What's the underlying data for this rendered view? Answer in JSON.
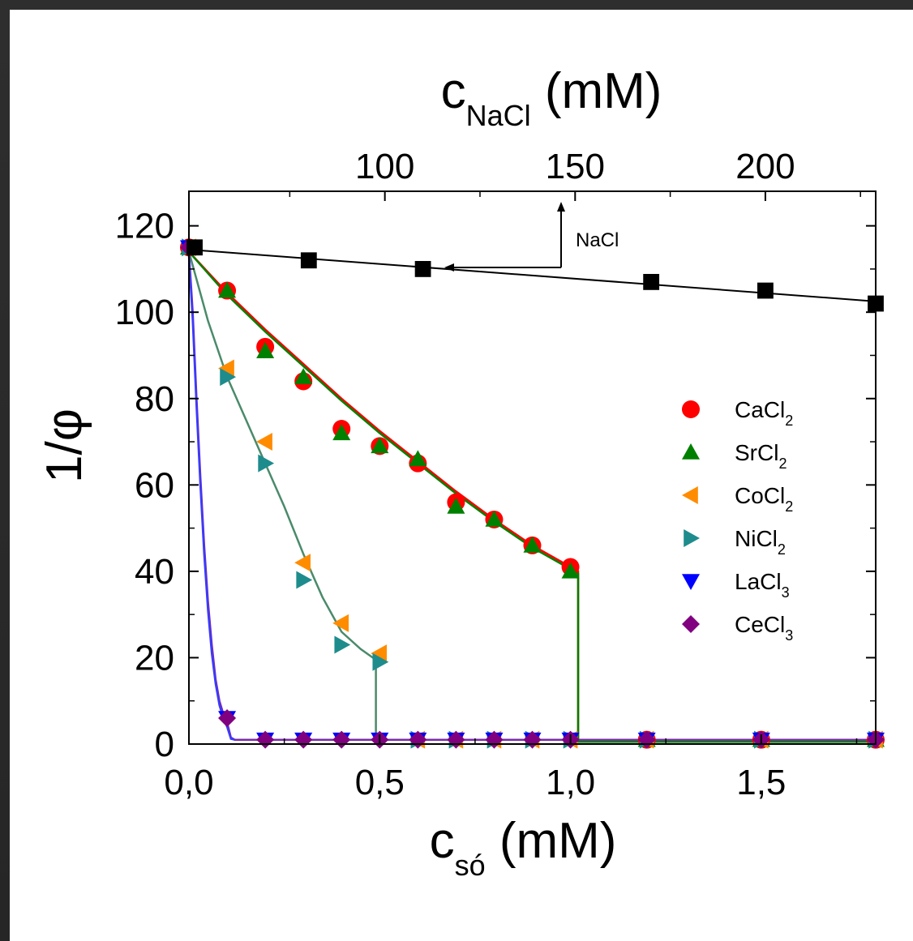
{
  "chart_data": {
    "type": "scatter",
    "title": "",
    "xlabel": "c",
    "xlabel_sub": "só",
    "xlabel_unit": " (mM)",
    "ylabel": "1/φ",
    "top_xlabel": "c",
    "top_xlabel_sub": "NaCl",
    "top_xlabel_unit": " (mM)",
    "xlim": [
      0,
      1.8
    ],
    "ylim": [
      0,
      128
    ],
    "top_xlim": [
      48.5,
      229
    ],
    "x_ticks": [
      0,
      0.5,
      1.0,
      1.5
    ],
    "x_tick_labels": [
      "0,0",
      "0,5",
      "1,0",
      "1,5"
    ],
    "y_ticks": [
      0,
      20,
      40,
      60,
      80,
      100,
      120
    ],
    "y_tick_labels": [
      "0",
      "20",
      "40",
      "60",
      "80",
      "100",
      "120"
    ],
    "top_ticks": [
      100,
      150,
      200
    ],
    "top_tick_labels": [
      "100",
      "150",
      "200"
    ],
    "legend_position": "right",
    "annotation": "NaCl",
    "series": [
      {
        "name": "CaCl",
        "sub": "2",
        "marker": "circle",
        "color": "#ff0000",
        "x": [
          0,
          0.1,
          0.2,
          0.3,
          0.4,
          0.5,
          0.6,
          0.7,
          0.8,
          0.9,
          1.0,
          1.2,
          1.5,
          1.8
        ],
        "y": [
          115,
          105,
          92,
          84,
          73,
          69,
          65,
          56,
          52,
          46,
          41,
          1,
          1,
          1
        ]
      },
      {
        "name": "SrCl",
        "sub": "2",
        "marker": "triangle-up",
        "color": "#008000",
        "x": [
          0,
          0.1,
          0.2,
          0.3,
          0.4,
          0.5,
          0.6,
          0.7,
          0.8,
          0.9,
          1.0,
          1.2,
          1.5,
          1.8
        ],
        "y": [
          115,
          105,
          91,
          85,
          72,
          69,
          66,
          55,
          52,
          46,
          40,
          1,
          1,
          1
        ]
      },
      {
        "name": "CoCl",
        "sub": "2",
        "marker": "triangle-left",
        "color": "#ff8c00",
        "x": [
          0,
          0.1,
          0.2,
          0.3,
          0.4,
          0.5,
          0.6,
          0.7,
          0.8,
          0.9,
          1.0,
          1.2,
          1.5,
          1.8
        ],
        "y": [
          115,
          87,
          70,
          42,
          28,
          21,
          1,
          1,
          1,
          1,
          1,
          1,
          1,
          1
        ]
      },
      {
        "name": "NiCl",
        "sub": "2",
        "marker": "triangle-right",
        "color": "#1e8c8c",
        "x": [
          0,
          0.1,
          0.2,
          0.3,
          0.4,
          0.5,
          0.6,
          0.7,
          0.8,
          0.9,
          1.0,
          1.2,
          1.5,
          1.8
        ],
        "y": [
          115,
          85,
          65,
          38,
          23,
          19,
          1,
          1,
          1,
          1,
          1,
          1,
          1,
          1
        ]
      },
      {
        "name": "LaCl",
        "sub": "3",
        "marker": "triangle-down",
        "color": "#0000ff",
        "x": [
          0,
          0.1,
          0.2,
          0.3,
          0.4,
          0.5,
          0.6,
          0.7,
          0.8,
          0.9,
          1.0,
          1.2,
          1.5,
          1.8
        ],
        "y": [
          115,
          6,
          1,
          1,
          1,
          1,
          1,
          1,
          1,
          1,
          1,
          1,
          1,
          1
        ]
      },
      {
        "name": "CeCl",
        "sub": "3",
        "marker": "diamond",
        "color": "#800080",
        "x": [
          0,
          0.1,
          0.2,
          0.3,
          0.4,
          0.5,
          0.6,
          0.7,
          0.8,
          0.9,
          1.0,
          1.2,
          1.5,
          1.8
        ],
        "y": [
          115,
          6,
          1,
          1,
          1,
          1,
          1,
          1,
          1,
          1,
          1,
          1,
          1,
          1
        ]
      }
    ],
    "nacl_series": {
      "marker": "square",
      "color": "#000000",
      "x": [
        50,
        80,
        110,
        170,
        200,
        229
      ],
      "y": [
        115,
        112,
        110,
        107,
        105,
        102
      ]
    },
    "fit_lines": [
      {
        "color": "#ff0000",
        "x": [
          0,
          0.1,
          0.2,
          0.3,
          0.4,
          0.5,
          0.6,
          0.7,
          0.8,
          0.9,
          1.0,
          1.02,
          1.02,
          1.8
        ],
        "y": [
          114,
          104.5,
          96,
          88,
          80,
          72.5,
          65.5,
          58.5,
          52,
          46,
          41,
          40,
          1,
          1
        ]
      },
      {
        "color": "#008000",
        "x": [
          0,
          0.1,
          0.2,
          0.3,
          0.4,
          0.5,
          0.6,
          0.7,
          0.8,
          0.9,
          1.0,
          1.02,
          1.02,
          1.8
        ],
        "y": [
          114,
          104,
          95.5,
          87.5,
          79.5,
          72,
          65,
          58,
          51.5,
          45.5,
          40.5,
          39.5,
          0.5,
          0.5
        ]
      },
      {
        "color": "#4a8a6a",
        "x": [
          0,
          0.05,
          0.1,
          0.15,
          0.2,
          0.25,
          0.3,
          0.35,
          0.4,
          0.45,
          0.49,
          0.49,
          0.5,
          1.0,
          1.8
        ],
        "y": [
          114,
          98,
          85,
          75,
          65,
          55,
          44,
          34,
          26,
          22,
          19.5,
          1,
          1,
          1,
          1
        ]
      },
      {
        "color": "#7a2aa8",
        "x": [
          0,
          0.01,
          0.02,
          0.03,
          0.04,
          0.05,
          0.06,
          0.07,
          0.08,
          0.09,
          0.1,
          0.11,
          0.12,
          0.5,
          1.0,
          1.8
        ],
        "y": [
          114,
          100,
          80,
          62,
          46,
          33,
          23,
          15,
          10,
          7,
          5,
          1.5,
          1,
          1,
          1,
          1
        ]
      },
      {
        "color": "#3a3aff",
        "x": [
          0,
          0.01,
          0.02,
          0.03,
          0.04,
          0.05,
          0.06,
          0.07,
          0.08,
          0.09,
          0.1,
          0.11,
          0.12
        ],
        "y": [
          113,
          98,
          78,
          60,
          44,
          31,
          21,
          14,
          9,
          6,
          4,
          1.2,
          1
        ]
      }
    ],
    "nacl_fit": {
      "color": "#000000",
      "x": [
        48.5,
        229
      ],
      "y": [
        114.5,
        102.5
      ]
    }
  }
}
